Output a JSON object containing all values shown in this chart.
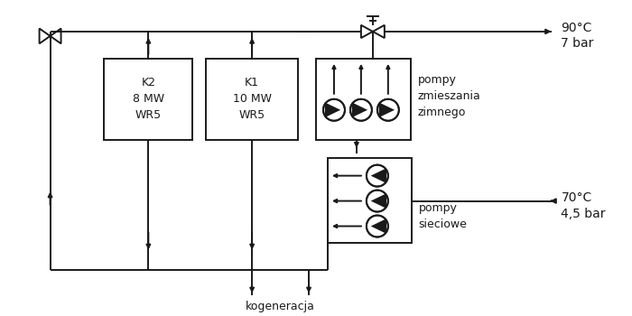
{
  "bg_color": "#ffffff",
  "line_color": "#1a1a1a",
  "lw": 1.4,
  "labels": {
    "temp_hot": "90°C",
    "press_hot": "7 bar",
    "temp_cold": "70°C",
    "press_cold": "4,5 bar",
    "kogeneracja": "kogeneracja",
    "pompy_zmieszania": "pompy\nzmieszania\nzimnego",
    "pompy_sieciowe": "pompy\nsieciowe",
    "K2": "K2\n8 MW\nWR5",
    "K1": "K1\n10 MW\nWR5"
  },
  "fs": 9,
  "fs_label": 10
}
